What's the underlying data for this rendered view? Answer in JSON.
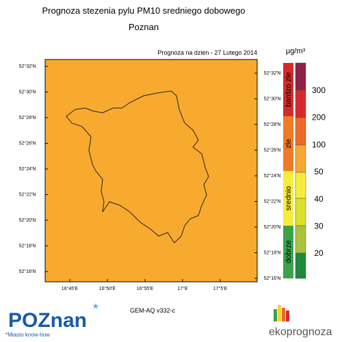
{
  "header": {
    "title": "Prognoza stezenia pylu PM10 sredniego dobowego",
    "subtitle": "Poznan",
    "forecast_date": "Prognoza na dzien -  27 Lutego 2014"
  },
  "map": {
    "lat_labels_left": [
      "52°32'N",
      "52°30'N",
      "52°28'N",
      "52°26'N",
      "52°24'N",
      "52°22'N",
      "52°20'N",
      "52°18'N",
      "52°16'N"
    ],
    "lat_labels_right": [
      "52°32'N",
      "52°30'N",
      "52°28'N",
      "52°26'N",
      "52°24'N",
      "52°22'N",
      "52°20'N",
      "52°18'N",
      "52°16'N"
    ],
    "lon_labels": [
      "16°45'E",
      "16°50'E",
      "16°55'E",
      "17°E",
      "17°5'E"
    ],
    "model": "GEM-AQ v332-c"
  },
  "legend": {
    "unit": "μg/m³",
    "categories": [
      "bardzo zle",
      "zle",
      "srednio",
      "dobrze"
    ],
    "levels": [
      300,
      200,
      100,
      50,
      40,
      30,
      20
    ]
  },
  "footer": {
    "logo_left": "POZnan",
    "logo_left_tagline": "*Miasto know-how",
    "logo_right": "ekoprognoza"
  }
}
